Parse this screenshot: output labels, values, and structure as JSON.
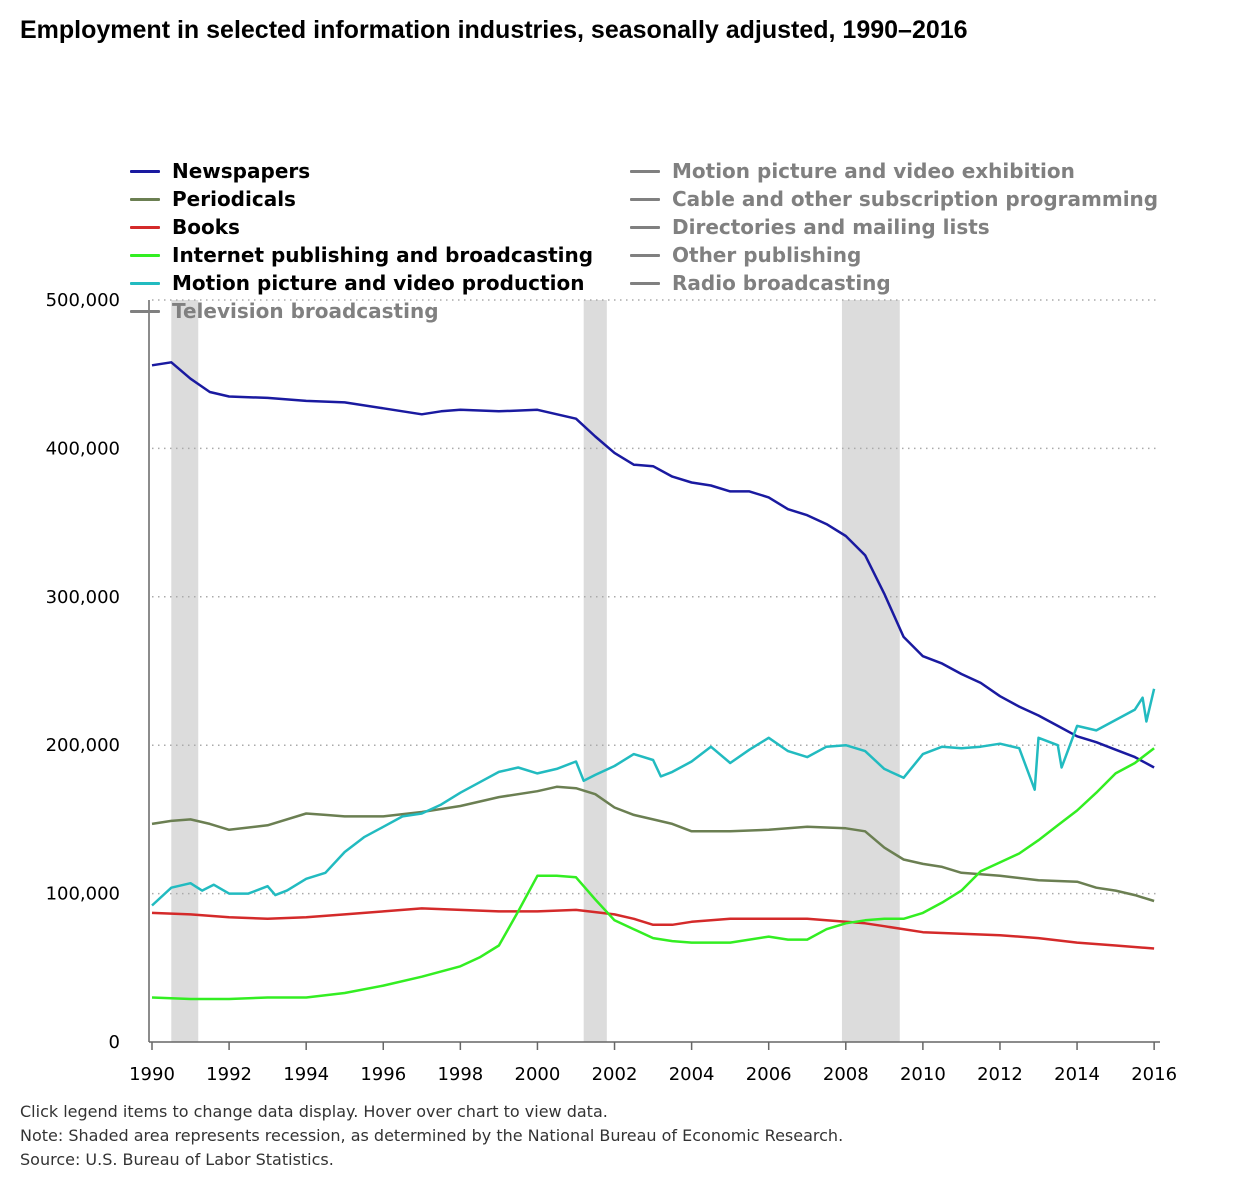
{
  "title": "Employment in selected information industries, seasonally adjusted, 1990–2016",
  "legend": [
    {
      "label": "Newspapers",
      "active": true,
      "color": "#1a1aa0"
    },
    {
      "label": "Periodicals",
      "active": true,
      "color": "#6b7f52"
    },
    {
      "label": "Books",
      "active": true,
      "color": "#d42a2a"
    },
    {
      "label": "Internet publishing and broadcasting",
      "active": true,
      "color": "#33ee22"
    },
    {
      "label": "Motion picture and video production",
      "active": true,
      "color": "#22bbc0"
    },
    {
      "label": "Television broadcasting",
      "active": false,
      "color": "#808080"
    },
    {
      "label": "Motion picture and video exhibition",
      "active": false,
      "color": "#808080"
    },
    {
      "label": "Cable and other subscription programming",
      "active": false,
      "color": "#808080"
    },
    {
      "label": "Directories and mailing lists",
      "active": false,
      "color": "#808080"
    },
    {
      "label": "Other publishing",
      "active": false,
      "color": "#808080"
    },
    {
      "label": "Radio broadcasting",
      "active": false,
      "color": "#808080"
    }
  ],
  "notes": {
    "line1": "Click legend items to change data display. Hover over chart to view data.",
    "line2": "Note: Shaded area represents recession, as determined by the National Bureau of Economic Research.",
    "line3": "Source: U.S. Bureau of Labor Statistics."
  },
  "chart_data": {
    "type": "line",
    "title": "Employment in selected information industries, seasonally adjusted, 1990–2016",
    "xlim": [
      1990,
      2016.1
    ],
    "ylim": [
      0,
      500000
    ],
    "x_ticks": [
      1990,
      1992,
      1994,
      1996,
      1998,
      2000,
      2002,
      2004,
      2006,
      2008,
      2010,
      2012,
      2014,
      2016
    ],
    "x_tick_labels": [
      "1990",
      "1992",
      "1994",
      "1996",
      "1998",
      "2000",
      "2002",
      "2004",
      "2006",
      "2008",
      "2010",
      "2012",
      "2014",
      "2016"
    ],
    "y_ticks": [
      0,
      100000,
      200000,
      300000,
      400000,
      500000
    ],
    "y_tick_labels": [
      "0",
      "100,000",
      "200,000",
      "300,000",
      "400,000",
      "500,000"
    ],
    "grid": "horizontal dotted",
    "legend_position": "top",
    "recessions": [
      [
        1990.5,
        1991.2
      ],
      [
        2001.2,
        2001.8
      ],
      [
        2007.9,
        2009.4
      ]
    ],
    "series": [
      {
        "name": "Newspapers",
        "color": "#1a1aa0",
        "points": [
          [
            1990,
            456000
          ],
          [
            1990.5,
            458000
          ],
          [
            1991,
            447000
          ],
          [
            1991.5,
            438000
          ],
          [
            1992,
            435000
          ],
          [
            1993,
            434000
          ],
          [
            1994,
            432000
          ],
          [
            1995,
            431000
          ],
          [
            1996,
            427000
          ],
          [
            1997,
            423000
          ],
          [
            1997.5,
            425000
          ],
          [
            1998,
            426000
          ],
          [
            1999,
            425000
          ],
          [
            2000,
            426000
          ],
          [
            2001,
            420000
          ],
          [
            2001.5,
            408000
          ],
          [
            2002,
            397000
          ],
          [
            2002.5,
            389000
          ],
          [
            2003,
            388000
          ],
          [
            2003.5,
            381000
          ],
          [
            2004,
            377000
          ],
          [
            2004.5,
            375000
          ],
          [
            2005,
            371000
          ],
          [
            2005.5,
            371000
          ],
          [
            2006,
            367000
          ],
          [
            2006.5,
            359000
          ],
          [
            2007,
            355000
          ],
          [
            2007.5,
            349000
          ],
          [
            2008,
            341000
          ],
          [
            2008.5,
            328000
          ],
          [
            2009,
            302000
          ],
          [
            2009.5,
            273000
          ],
          [
            2010,
            260000
          ],
          [
            2010.5,
            255000
          ],
          [
            2011,
            248000
          ],
          [
            2011.5,
            242000
          ],
          [
            2012,
            233000
          ],
          [
            2012.5,
            226000
          ],
          [
            2013,
            220000
          ],
          [
            2013.5,
            213000
          ],
          [
            2014,
            206000
          ],
          [
            2014.5,
            202000
          ],
          [
            2015,
            197000
          ],
          [
            2015.5,
            192000
          ],
          [
            2016,
            185000
          ]
        ]
      },
      {
        "name": "Periodicals",
        "color": "#6b7f52",
        "points": [
          [
            1990,
            147000
          ],
          [
            1990.5,
            149000
          ],
          [
            1991,
            150000
          ],
          [
            1991.5,
            147000
          ],
          [
            1992,
            143000
          ],
          [
            1993,
            146000
          ],
          [
            1994,
            154000
          ],
          [
            1994.5,
            153000
          ],
          [
            1995,
            152000
          ],
          [
            1996,
            152000
          ],
          [
            1997,
            155000
          ],
          [
            1998,
            159000
          ],
          [
            1999,
            165000
          ],
          [
            2000,
            169000
          ],
          [
            2000.5,
            172000
          ],
          [
            2001,
            171000
          ],
          [
            2001.5,
            167000
          ],
          [
            2002,
            158000
          ],
          [
            2002.5,
            153000
          ],
          [
            2003,
            150000
          ],
          [
            2003.5,
            147000
          ],
          [
            2004,
            142000
          ],
          [
            2005,
            142000
          ],
          [
            2006,
            143000
          ],
          [
            2007,
            145000
          ],
          [
            2008,
            144000
          ],
          [
            2008.5,
            142000
          ],
          [
            2009,
            131000
          ],
          [
            2009.5,
            123000
          ],
          [
            2010,
            120000
          ],
          [
            2010.5,
            118000
          ],
          [
            2011,
            114000
          ],
          [
            2012,
            112000
          ],
          [
            2013,
            109000
          ],
          [
            2014,
            108000
          ],
          [
            2014.5,
            104000
          ],
          [
            2015,
            102000
          ],
          [
            2015.5,
            99000
          ],
          [
            2016,
            95000
          ]
        ]
      },
      {
        "name": "Books",
        "color": "#d42a2a",
        "points": [
          [
            1990,
            87000
          ],
          [
            1991,
            86000
          ],
          [
            1992,
            84000
          ],
          [
            1993,
            83000
          ],
          [
            1994,
            84000
          ],
          [
            1995,
            86000
          ],
          [
            1996,
            88000
          ],
          [
            1997,
            90000
          ],
          [
            1998,
            89000
          ],
          [
            1999,
            88000
          ],
          [
            2000,
            88000
          ],
          [
            2001,
            89000
          ],
          [
            2002,
            86000
          ],
          [
            2002.5,
            83000
          ],
          [
            2003,
            79000
          ],
          [
            2003.5,
            79000
          ],
          [
            2004,
            81000
          ],
          [
            2005,
            83000
          ],
          [
            2006,
            83000
          ],
          [
            2007,
            83000
          ],
          [
            2008,
            81000
          ],
          [
            2008.5,
            80000
          ],
          [
            2009,
            78000
          ],
          [
            2010,
            74000
          ],
          [
            2011,
            73000
          ],
          [
            2012,
            72000
          ],
          [
            2013,
            70000
          ],
          [
            2014,
            67000
          ],
          [
            2015,
            65000
          ],
          [
            2016,
            63000
          ]
        ]
      },
      {
        "name": "Internet publishing and broadcasting",
        "color": "#33ee22",
        "points": [
          [
            1990,
            30000
          ],
          [
            1991,
            29000
          ],
          [
            1992,
            29000
          ],
          [
            1993,
            30000
          ],
          [
            1994,
            30000
          ],
          [
            1995,
            33000
          ],
          [
            1996,
            38000
          ],
          [
            1997,
            44000
          ],
          [
            1998,
            51000
          ],
          [
            1998.5,
            57000
          ],
          [
            1999,
            65000
          ],
          [
            1999.5,
            88000
          ],
          [
            2000,
            112000
          ],
          [
            2000.5,
            112000
          ],
          [
            2001,
            111000
          ],
          [
            2001.5,
            96000
          ],
          [
            2002,
            82000
          ],
          [
            2002.5,
            76000
          ],
          [
            2003,
            70000
          ],
          [
            2003.5,
            68000
          ],
          [
            2004,
            67000
          ],
          [
            2005,
            67000
          ],
          [
            2006,
            71000
          ],
          [
            2006.5,
            69000
          ],
          [
            2007,
            69000
          ],
          [
            2007.5,
            76000
          ],
          [
            2008,
            80000
          ],
          [
            2008.5,
            82000
          ],
          [
            2009,
            83000
          ],
          [
            2009.5,
            83000
          ],
          [
            2010,
            87000
          ],
          [
            2010.5,
            94000
          ],
          [
            2011,
            102000
          ],
          [
            2011.5,
            115000
          ],
          [
            2012,
            121000
          ],
          [
            2012.5,
            127000
          ],
          [
            2013,
            136000
          ],
          [
            2013.5,
            146000
          ],
          [
            2014,
            156000
          ],
          [
            2014.5,
            168000
          ],
          [
            2015,
            181000
          ],
          [
            2015.5,
            188000
          ],
          [
            2016,
            198000
          ]
        ]
      },
      {
        "name": "Motion picture and video production",
        "color": "#22bbc0",
        "points": [
          [
            1990,
            92000
          ],
          [
            1990.5,
            104000
          ],
          [
            1991,
            107000
          ],
          [
            1991.3,
            102000
          ],
          [
            1991.6,
            106000
          ],
          [
            1992,
            100000
          ],
          [
            1992.5,
            100000
          ],
          [
            1993,
            105000
          ],
          [
            1993.2,
            99000
          ],
          [
            1993.5,
            102000
          ],
          [
            1994,
            110000
          ],
          [
            1994.5,
            114000
          ],
          [
            1995,
            128000
          ],
          [
            1995.5,
            138000
          ],
          [
            1996,
            145000
          ],
          [
            1996.5,
            152000
          ],
          [
            1997,
            154000
          ],
          [
            1997.5,
            160000
          ],
          [
            1998,
            168000
          ],
          [
            1998.5,
            175000
          ],
          [
            1999,
            182000
          ],
          [
            1999.5,
            185000
          ],
          [
            2000,
            181000
          ],
          [
            2000.5,
            184000
          ],
          [
            2001,
            189000
          ],
          [
            2001.2,
            176000
          ],
          [
            2001.5,
            180000
          ],
          [
            2002,
            186000
          ],
          [
            2002.5,
            194000
          ],
          [
            2003,
            190000
          ],
          [
            2003.2,
            179000
          ],
          [
            2003.5,
            182000
          ],
          [
            2004,
            189000
          ],
          [
            2004.5,
            199000
          ],
          [
            2005,
            188000
          ],
          [
            2005.5,
            197000
          ],
          [
            2006,
            205000
          ],
          [
            2006.5,
            196000
          ],
          [
            2007,
            192000
          ],
          [
            2007.5,
            199000
          ],
          [
            2008,
            200000
          ],
          [
            2008.5,
            196000
          ],
          [
            2009,
            184000
          ],
          [
            2009.5,
            178000
          ],
          [
            2010,
            194000
          ],
          [
            2010.5,
            199000
          ],
          [
            2011,
            198000
          ],
          [
            2011.5,
            199000
          ],
          [
            2012,
            201000
          ],
          [
            2012.5,
            198000
          ],
          [
            2012.9,
            170000
          ],
          [
            2013,
            205000
          ],
          [
            2013.5,
            200000
          ],
          [
            2013.6,
            185000
          ],
          [
            2014,
            213000
          ],
          [
            2014.5,
            210000
          ],
          [
            2015,
            217000
          ],
          [
            2015.5,
            224000
          ],
          [
            2015.7,
            232000
          ],
          [
            2015.8,
            216000
          ],
          [
            2016,
            238000
          ]
        ]
      }
    ]
  }
}
